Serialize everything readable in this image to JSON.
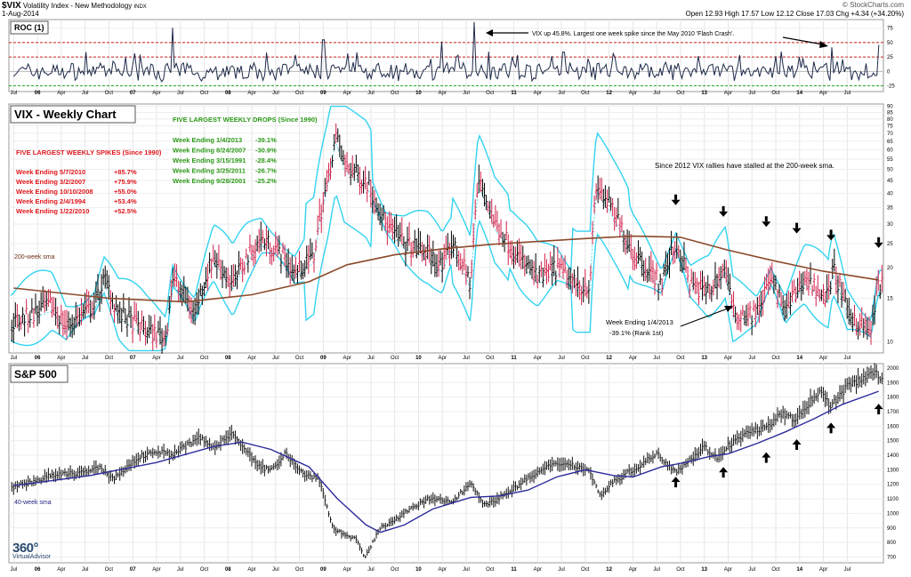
{
  "header": {
    "symbol": "$VIX",
    "description": "Volatility Index - New Methodology",
    "exchange": "INDX",
    "date": "1-Aug-2014",
    "brand": "© StockCharts.com",
    "quote": "Open 12.93  High 17.57  Low 12.12  Close 17.03  Chg +4.34 (+34.20%)"
  },
  "logo": {
    "line1": "360°",
    "line2": "VirtualAdvisor"
  },
  "x_axis_labels": [
    "Jul",
    "06",
    "Apr",
    "Jul",
    "Oct",
    "07",
    "Apr",
    "Jul",
    "Oct",
    "08",
    "Apr",
    "Jul",
    "Oct",
    "09",
    "Apr",
    "Jul",
    "Oct",
    "10",
    "Apr",
    "Jul",
    "Oct",
    "11",
    "Apr",
    "Jul",
    "Oct",
    "12",
    "Apr",
    "Jul",
    "Oct",
    "13",
    "Apr",
    "Jul",
    "Oct",
    "14",
    "Apr",
    "Jul"
  ],
  "chart_data": [
    {
      "type": "line",
      "title": "ROC (1)",
      "ylim": [
        -35,
        90
      ],
      "y_ticks": [
        75,
        50,
        25,
        0,
        -25
      ],
      "reference_lines": [
        50,
        25,
        -25
      ],
      "annotation": "VIX up 45.8%. Largest one week spike since the May 2010 'Flash Crash'.",
      "spikes": [
        {
          "date": "Mar 2007",
          "value": 76
        },
        {
          "date": "Oct 2008",
          "value": 55
        },
        {
          "date": "Jan 2010",
          "value": 52
        },
        {
          "date": "May 2010",
          "value": 86
        },
        {
          "date": "Feb 2014",
          "value": 42
        },
        {
          "date": "Aug 2014",
          "value": 46
        }
      ]
    },
    {
      "type": "bar",
      "title": "VIX - Weekly Chart",
      "scale": "log",
      "ylim": [
        9,
        92
      ],
      "y_ticks": [
        90,
        85,
        80,
        75,
        70,
        65,
        60,
        55,
        50,
        45,
        40,
        35,
        30,
        25,
        20,
        15,
        10
      ],
      "series": [
        {
          "name": "200-week sma"
        }
      ],
      "path": [
        [
          2005.5,
          12
        ],
        [
          2005.9,
          14
        ],
        [
          2006.05,
          11.5
        ],
        [
          2006.35,
          14
        ],
        [
          2006.45,
          18
        ],
        [
          2006.6,
          13
        ],
        [
          2006.9,
          11
        ],
        [
          2007.1,
          10.5
        ],
        [
          2007.17,
          18
        ],
        [
          2007.4,
          13
        ],
        [
          2007.6,
          22
        ],
        [
          2007.8,
          17
        ],
        [
          2007.95,
          22
        ],
        [
          2008.1,
          26
        ],
        [
          2008.25,
          24
        ],
        [
          2008.45,
          19
        ],
        [
          2008.65,
          22
        ],
        [
          2008.8,
          45
        ],
        [
          2008.88,
          68
        ],
        [
          2008.97,
          52
        ],
        [
          2009.2,
          45
        ],
        [
          2009.4,
          30
        ],
        [
          2009.6,
          25
        ],
        [
          2009.85,
          23
        ],
        [
          2010.0,
          20
        ],
        [
          2010.1,
          25
        ],
        [
          2010.3,
          17
        ],
        [
          2010.38,
          45
        ],
        [
          2010.55,
          30
        ],
        [
          2010.8,
          22
        ],
        [
          2011.0,
          18
        ],
        [
          2011.2,
          20
        ],
        [
          2011.4,
          17
        ],
        [
          2011.55,
          17
        ],
        [
          2011.62,
          43
        ],
        [
          2011.8,
          33
        ],
        [
          2012.0,
          23
        ],
        [
          2012.3,
          17
        ],
        [
          2012.45,
          25
        ],
        [
          2012.6,
          17
        ],
        [
          2012.8,
          16
        ],
        [
          2012.97,
          20
        ],
        [
          2013.05,
          13
        ],
        [
          2013.3,
          13
        ],
        [
          2013.45,
          18
        ],
        [
          2013.6,
          13
        ],
        [
          2013.8,
          18
        ],
        [
          2014.05,
          15
        ],
        [
          2014.1,
          20
        ],
        [
          2014.25,
          13
        ],
        [
          2014.5,
          11
        ],
        [
          2014.58,
          17
        ]
      ],
      "sma200": [
        [
          2005.5,
          16.5
        ],
        [
          2006.5,
          15
        ],
        [
          2007.3,
          14.5
        ],
        [
          2008.0,
          15.5
        ],
        [
          2008.6,
          17.5
        ],
        [
          2009.0,
          20.5
        ],
        [
          2009.5,
          22.5
        ],
        [
          2010.0,
          23.8
        ],
        [
          2010.5,
          24.8
        ],
        [
          2011.0,
          25.5
        ],
        [
          2011.5,
          26.2
        ],
        [
          2012.0,
          26.8
        ],
        [
          2012.5,
          26.5
        ],
        [
          2013.0,
          23.5
        ],
        [
          2013.5,
          21.2
        ],
        [
          2014.0,
          19.3
        ],
        [
          2014.58,
          17.8
        ]
      ],
      "annotations": [
        "200-week sma",
        "Since 2012 VIX rallies have stalled at the 200-week sma.",
        "Week Ending 1/4/2013",
        "-39.1% (Rank 1st)"
      ],
      "spikes_table": {
        "title": "FIVE LARGEST WEEKLY SPIKES (Since 1990)",
        "rows": [
          {
            "week": "Week Ending 5/7/2010",
            "value": "+85.7%"
          },
          {
            "week": "Week Ending 3/2/2007",
            "value": "+75.9%"
          },
          {
            "week": "Week Ending 10/10/2008",
            "value": "+55.0%"
          },
          {
            "week": "Week Ending 2/4/1994",
            "value": "+53.4%"
          },
          {
            "week": "Week Ending 1/22/2010",
            "value": "+52.5%"
          }
        ]
      },
      "drops_table": {
        "title": "FIVE LARGEST WEEKLY DROPS (Since 1990)",
        "rows": [
          {
            "week": "Week Ending 1/4/2013",
            "value": "-39.1%"
          },
          {
            "week": "Week Ending 8/24/2007",
            "value": "-30.9%"
          },
          {
            "week": "Week Ending 3/15/1991",
            "value": "-28.4%"
          },
          {
            "week": "Week Ending 3/25/2011",
            "value": "-26.7%"
          },
          {
            "week": "Week Ending 9/28/2001",
            "value": "-25.2%"
          }
        ]
      },
      "resistance_tests": [
        2012.45,
        2012.95,
        2013.4,
        2013.72,
        2014.08,
        2014.58
      ]
    },
    {
      "type": "bar",
      "title": "S&P 500",
      "ylim": [
        660,
        2030
      ],
      "y_ticks": [
        2000,
        1900,
        1800,
        1700,
        1600,
        1500,
        1400,
        1300,
        1200,
        1100,
        1000,
        900,
        800,
        700
      ],
      "series": [
        {
          "name": "40-week sma"
        }
      ],
      "path": [
        [
          2005.5,
          1180
        ],
        [
          2005.9,
          1260
        ],
        [
          2006.2,
          1280
        ],
        [
          2006.4,
          1310
        ],
        [
          2006.55,
          1240
        ],
        [
          2006.8,
          1380
        ],
        [
          2007.0,
          1430
        ],
        [
          2007.15,
          1400
        ],
        [
          2007.45,
          1520
        ],
        [
          2007.6,
          1450
        ],
        [
          2007.8,
          1560
        ],
        [
          2008.05,
          1330
        ],
        [
          2008.2,
          1290
        ],
        [
          2008.35,
          1420
        ],
        [
          2008.55,
          1260
        ],
        [
          2008.7,
          1250
        ],
        [
          2008.85,
          900
        ],
        [
          2008.95,
          860
        ],
        [
          2009.1,
          820
        ],
        [
          2009.18,
          690
        ],
        [
          2009.35,
          900
        ],
        [
          2009.6,
          1000
        ],
        [
          2009.85,
          1100
        ],
        [
          2010.1,
          1080
        ],
        [
          2010.3,
          1210
        ],
        [
          2010.45,
          1050
        ],
        [
          2010.65,
          1130
        ],
        [
          2010.9,
          1240
        ],
        [
          2011.1,
          1320
        ],
        [
          2011.3,
          1350
        ],
        [
          2011.55,
          1290
        ],
        [
          2011.65,
          1120
        ],
        [
          2011.8,
          1220
        ],
        [
          2012.0,
          1300
        ],
        [
          2012.25,
          1410
        ],
        [
          2012.45,
          1290
        ],
        [
          2012.6,
          1370
        ],
        [
          2012.75,
          1460
        ],
        [
          2012.88,
          1380
        ],
        [
          2013.0,
          1470
        ],
        [
          2013.25,
          1570
        ],
        [
          2013.45,
          1600
        ],
        [
          2013.55,
          1690
        ],
        [
          2013.7,
          1640
        ],
        [
          2013.95,
          1840
        ],
        [
          2014.08,
          1740
        ],
        [
          2014.25,
          1870
        ],
        [
          2014.55,
          1990
        ],
        [
          2014.58,
          1925
        ]
      ],
      "sma40": [
        [
          2005.5,
          1190
        ],
        [
          2006.3,
          1260
        ],
        [
          2007.0,
          1350
        ],
        [
          2007.6,
          1460
        ],
        [
          2007.9,
          1490
        ],
        [
          2008.2,
          1440
        ],
        [
          2008.6,
          1320
        ],
        [
          2008.9,
          1100
        ],
        [
          2009.2,
          920
        ],
        [
          2009.35,
          870
        ],
        [
          2009.6,
          920
        ],
        [
          2009.9,
          1030
        ],
        [
          2010.3,
          1110
        ],
        [
          2010.6,
          1120
        ],
        [
          2010.9,
          1160
        ],
        [
          2011.2,
          1250
        ],
        [
          2011.5,
          1300
        ],
        [
          2011.8,
          1260
        ],
        [
          2012.0,
          1250
        ],
        [
          2012.3,
          1320
        ],
        [
          2012.55,
          1350
        ],
        [
          2012.8,
          1390
        ],
        [
          2013.0,
          1410
        ],
        [
          2013.3,
          1480
        ],
        [
          2013.6,
          1560
        ],
        [
          2013.9,
          1650
        ],
        [
          2014.2,
          1750
        ],
        [
          2014.58,
          1840
        ]
      ],
      "annotations": [
        "40-week sma"
      ],
      "support_tests": [
        2012.45,
        2012.95,
        2013.4,
        2013.72,
        2014.08,
        2014.58
      ]
    }
  ]
}
